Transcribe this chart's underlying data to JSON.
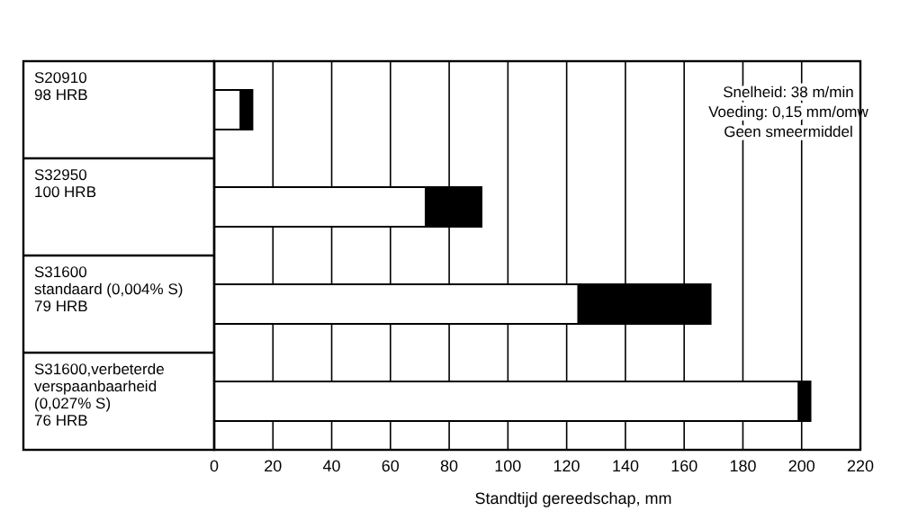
{
  "chart_data": {
    "type": "bar",
    "orientation": "horizontal",
    "stacked": true,
    "xlabel": "Standtijd gereedschap, mm",
    "categories": [
      "S20910\n98 HRB",
      "S32950\n100 HRB",
      "S31600\nstandaard (0,004% S)\n79 HRB",
      "S31600,verbeterde\nverspaanbaarheid\n(0,027% S)\n76 HRB"
    ],
    "series": [
      {
        "color": "#ffffff",
        "values": [
          9,
          72,
          124,
          199
        ]
      },
      {
        "color": "#000000",
        "values": [
          4,
          19,
          45,
          4
        ]
      }
    ],
    "xlim": [
      0,
      220
    ],
    "xticks": [
      0,
      20,
      40,
      60,
      80,
      100,
      120,
      140,
      160,
      180,
      200,
      220
    ],
    "grid": "x",
    "annotations": [
      "Snelheid: 38 m/min\nVoeding: 0,15 mm/omw\nGeen smeermiddel"
    ]
  }
}
